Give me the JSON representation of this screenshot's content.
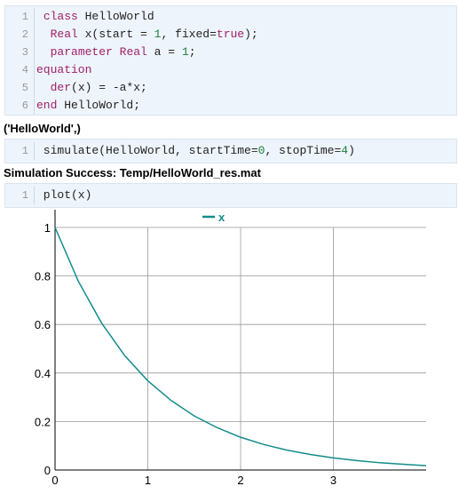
{
  "cell1": {
    "lines": [
      {
        "num": "1",
        "parts": [
          {
            "t": " ",
            "c": "plain"
          },
          {
            "t": "class",
            "c": "kw"
          },
          {
            "t": " HelloWorld",
            "c": "plain"
          }
        ]
      },
      {
        "num": "2",
        "parts": [
          {
            "t": "  ",
            "c": "plain"
          },
          {
            "t": "Real",
            "c": "kw"
          },
          {
            "t": " x(start = ",
            "c": "plain"
          },
          {
            "t": "1",
            "c": "num"
          },
          {
            "t": ", fixed=",
            "c": "plain"
          },
          {
            "t": "true",
            "c": "kw"
          },
          {
            "t": ");",
            "c": "plain"
          }
        ]
      },
      {
        "num": "3",
        "parts": [
          {
            "t": "  ",
            "c": "plain"
          },
          {
            "t": "parameter",
            "c": "kw"
          },
          {
            "t": " ",
            "c": "plain"
          },
          {
            "t": "Real",
            "c": "kw"
          },
          {
            "t": " a = ",
            "c": "plain"
          },
          {
            "t": "1",
            "c": "num"
          },
          {
            "t": ";",
            "c": "plain"
          }
        ]
      },
      {
        "num": "4",
        "parts": [
          {
            "t": "equation",
            "c": "kw"
          }
        ]
      },
      {
        "num": "5",
        "parts": [
          {
            "t": "  ",
            "c": "plain"
          },
          {
            "t": "der",
            "c": "kw"
          },
          {
            "t": "(x) = -a*x;",
            "c": "plain"
          }
        ]
      },
      {
        "num": "6",
        "parts": [
          {
            "t": "end",
            "c": "kw"
          },
          {
            "t": " HelloWorld;",
            "c": "plain"
          }
        ]
      }
    ]
  },
  "output1": "('HelloWorld',)",
  "cell2": {
    "lines": [
      {
        "num": "1",
        "parts": [
          {
            "t": " simulate(HelloWorld, startTime=",
            "c": "plain"
          },
          {
            "t": "0",
            "c": "num"
          },
          {
            "t": ", stopTime=",
            "c": "plain"
          },
          {
            "t": "4",
            "c": "num"
          },
          {
            "t": ")",
            "c": "plain"
          }
        ]
      }
    ]
  },
  "output2": "Simulation Success: Temp/HelloWorld_res.mat",
  "cell3": {
    "lines": [
      {
        "num": "1",
        "parts": [
          {
            "t": " plot(x)",
            "c": "plain"
          }
        ]
      }
    ]
  },
  "chart_data": {
    "type": "line",
    "series": [
      {
        "name": "x",
        "color": "#138c8c",
        "x": [
          0,
          0.25,
          0.5,
          0.75,
          1,
          1.25,
          1.5,
          1.75,
          2,
          2.25,
          2.5,
          2.75,
          3,
          3.25,
          3.5,
          3.75,
          4
        ],
        "y": [
          1,
          0.779,
          0.607,
          0.472,
          0.368,
          0.287,
          0.223,
          0.174,
          0.135,
          0.105,
          0.082,
          0.064,
          0.05,
          0.039,
          0.03,
          0.024,
          0.018
        ]
      }
    ],
    "xlim": [
      0,
      4
    ],
    "ylim": [
      0,
      1
    ],
    "xticks": [
      "0",
      "1",
      "2",
      "3"
    ],
    "yticks": [
      "0",
      "0.2",
      "0.4",
      "0.6",
      "0.8",
      "1"
    ],
    "grid": true,
    "legend": "top-center",
    "xlabel": "",
    "ylabel": "",
    "title": ""
  }
}
